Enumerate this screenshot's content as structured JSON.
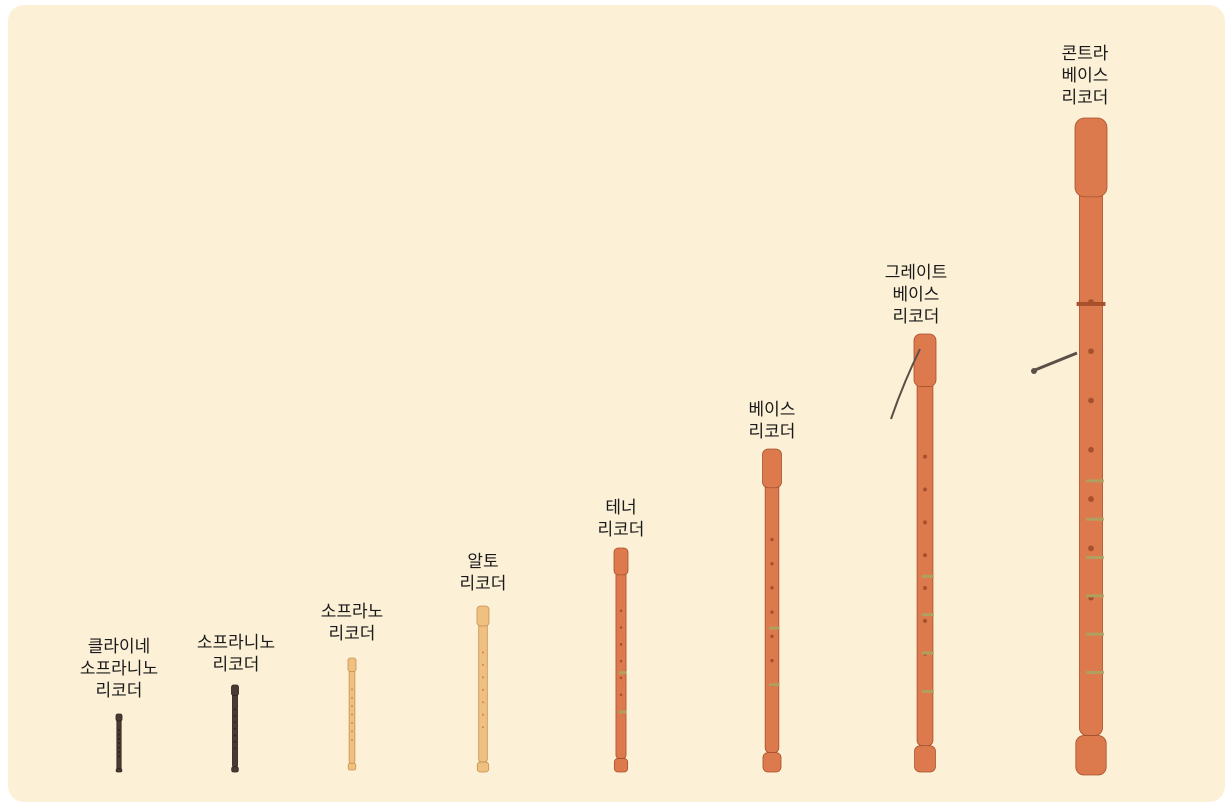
{
  "colors": {
    "background": "#fcf0d6",
    "wood_red": "#dc7a4e",
    "wood_light": "#f0c080",
    "wood_dark": "#4a3a34",
    "brass": "#b0a060"
  },
  "recorders": [
    {
      "id": "kleine-sopranino",
      "lines": [
        "클라이네",
        "소프라니노",
        "리코더"
      ],
      "wood": "dark"
    },
    {
      "id": "sopranino",
      "lines": [
        "소프라니노",
        "리코더"
      ],
      "wood": "dark"
    },
    {
      "id": "soprano",
      "lines": [
        "소프라노",
        "리코더"
      ],
      "wood": "light"
    },
    {
      "id": "alto",
      "lines": [
        "알토",
        "리코더"
      ],
      "wood": "light"
    },
    {
      "id": "tenor",
      "lines": [
        "테너",
        "리코더"
      ],
      "wood": "red"
    },
    {
      "id": "bass",
      "lines": [
        "베이스",
        "리코더"
      ],
      "wood": "red"
    },
    {
      "id": "great-bass",
      "lines": [
        "그레이트",
        "베이스",
        "리코더"
      ],
      "wood": "red"
    },
    {
      "id": "contrabass",
      "lines": [
        "콘트라",
        "베이스",
        "리코더"
      ],
      "wood": "red"
    }
  ]
}
